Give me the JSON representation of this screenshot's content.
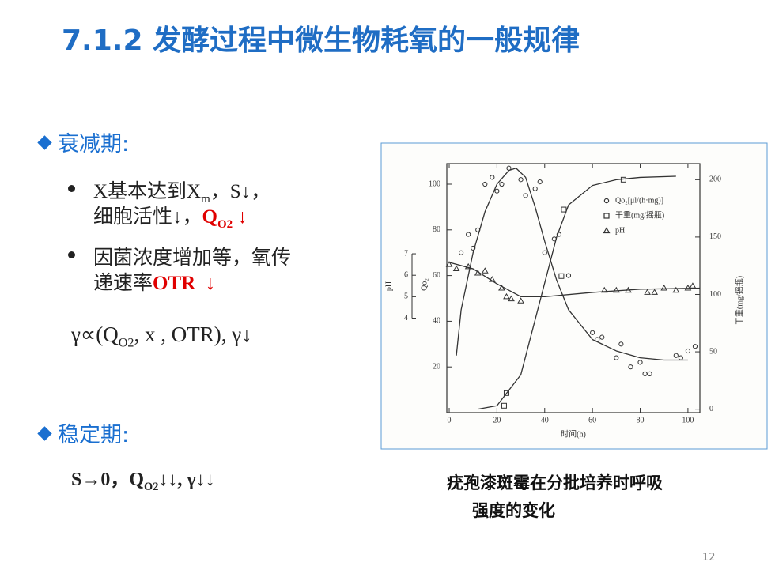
{
  "title": "7.1.2 发酵过程中微生物耗氧的一般规律",
  "sections": [
    {
      "heading": "衰减期:",
      "bullets": [
        [
          "X基本达到X",
          "m",
          "，S↓，",
          "细胞活性↓，",
          "Q",
          "O2",
          "↓"
        ],
        [
          "因菌浓度增加等，氧传",
          "递速率",
          "OTR",
          "↓"
        ]
      ],
      "formula": [
        "γ∝(Q",
        "O2",
        ", x , OTR),  γ↓"
      ]
    },
    {
      "heading": "稳定期:",
      "formula": [
        "S→0，Q",
        "O2",
        "↓↓, γ↓↓"
      ]
    }
  ],
  "caption": [
    "疣孢漆斑霉在分批培养时呼吸",
    "强度的变化"
  ],
  "page_number": "12",
  "chart_data": {
    "type": "line",
    "xlabel": "时间(h)",
    "xlim": [
      -1,
      105
    ],
    "xticks": [
      0,
      20,
      40,
      60,
      80,
      100
    ],
    "ylabel": "Qo₂",
    "ylim": [
      0,
      109
    ],
    "yticks": [
      20,
      40,
      60,
      80,
      100
    ],
    "y2label": "干重(mg/摇瓶)",
    "y2lim": [
      -3,
      214
    ],
    "y2ticks": [
      0,
      50,
      100,
      150,
      200
    ],
    "y3label": "pH",
    "y3lim": [
      -0.4,
      11.2
    ],
    "y3ticks": [
      4,
      5,
      6,
      7
    ],
    "color": "#333333",
    "series": [
      {
        "name": "Qo₂[μl/(h·mg)]",
        "marker": "circle",
        "axis": "y",
        "x": [
          5,
          8,
          10,
          12,
          15,
          18,
          20,
          22,
          25,
          30,
          32,
          36,
          38,
          40,
          44,
          46,
          50,
          60,
          62,
          64,
          70,
          72,
          76,
          80,
          82,
          84,
          95,
          97,
          100,
          103
        ],
        "values": [
          70,
          78,
          72,
          80,
          100,
          103,
          97,
          100,
          107,
          102,
          95,
          98,
          101,
          70,
          76,
          78,
          60,
          35,
          32,
          33,
          24,
          30,
          20,
          22,
          17,
          17,
          25,
          24,
          27,
          29
        ]
      },
      {
        "name": "干重(mg/摇瓶)",
        "marker": "square",
        "axis": "y2",
        "x": [
          23,
          24,
          47,
          48,
          73
        ],
        "values": [
          3,
          14,
          116,
          174,
          200
        ]
      },
      {
        "name": "pH",
        "marker": "triangle",
        "axis": "y3",
        "x": [
          0,
          3,
          8,
          12,
          15,
          18,
          22,
          24,
          26,
          30,
          65,
          70,
          75,
          83,
          86,
          90,
          95,
          100,
          102
        ],
        "values": [
          6.5,
          6.3,
          6.4,
          6.1,
          6.2,
          5.8,
          5.4,
          5.0,
          4.9,
          4.8,
          5.3,
          5.3,
          5.3,
          5.2,
          5.2,
          5.4,
          5.3,
          5.4,
          5.5
        ]
      },
      {
        "marker": "line",
        "axis": "y",
        "x": [
          3,
          5,
          10,
          15,
          20,
          25,
          28,
          32,
          36,
          40,
          45,
          50,
          60,
          70,
          80,
          90,
          100
        ],
        "values": [
          25,
          45,
          70,
          88,
          100,
          106,
          107,
          103,
          90,
          75,
          58,
          45,
          32,
          27,
          24,
          23,
          23
        ]
      },
      {
        "marker": "line",
        "axis": "y2",
        "x": [
          12,
          20,
          30,
          40,
          45,
          50,
          60,
          70,
          80,
          95
        ],
        "values": [
          0,
          3,
          30,
          110,
          150,
          178,
          195,
          200,
          202,
          203
        ]
      },
      {
        "marker": "line",
        "axis": "y3",
        "x": [
          0,
          10,
          20,
          30,
          40,
          60,
          80,
          105
        ],
        "values": [
          6.6,
          6.3,
          5.6,
          5.0,
          5.0,
          5.2,
          5.35,
          5.4
        ]
      }
    ]
  }
}
